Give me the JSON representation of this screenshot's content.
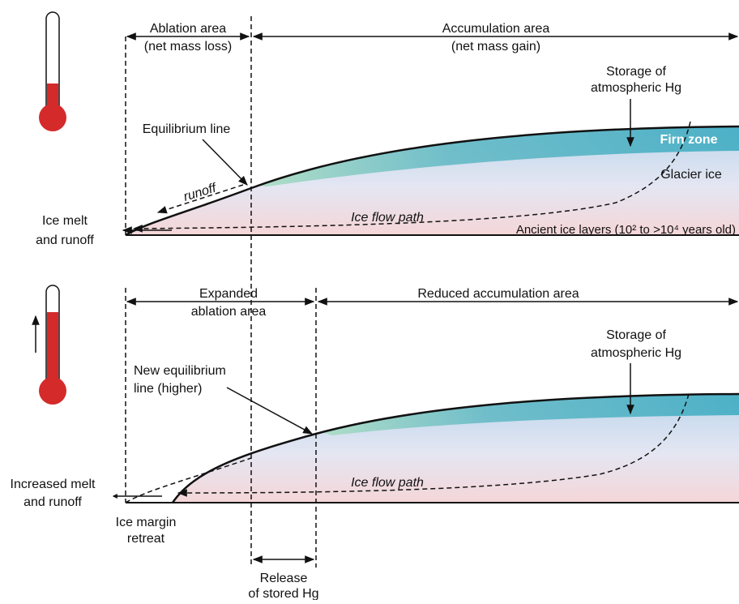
{
  "top_panel": {
    "ablation_area": [
      "Ablation area",
      "(net mass loss)"
    ],
    "accumulation_area": [
      "Accumulation area",
      "(net mass gain)"
    ],
    "storage": [
      "Storage of",
      "atmospheric Hg"
    ],
    "firn_zone": "Firn zone",
    "equilibrium_line": "Equilibrium line",
    "runoff": "runoff",
    "glacier_ice": "Glacier ice",
    "ice_flow_path": "Ice flow path",
    "ancient_ice": "Ancient ice layers (10² to >10⁴ years old)",
    "ice_melt": [
      "Ice melt",
      "and runoff"
    ]
  },
  "bottom_panel": {
    "expanded_ablation": [
      "Expanded",
      "ablation area"
    ],
    "reduced_accumulation": "Reduced accumulation area",
    "storage": [
      "Storage of",
      "atmospheric Hg"
    ],
    "new_equilibrium_line": [
      "New equilibrium",
      "line (higher)"
    ],
    "ice_flow_path": "Ice flow path",
    "increased_melt": [
      "Increased melt",
      "and runoff"
    ],
    "ice_margin": [
      "Ice margin",
      "retreat"
    ],
    "release": [
      "Release",
      "of stored Hg"
    ]
  }
}
